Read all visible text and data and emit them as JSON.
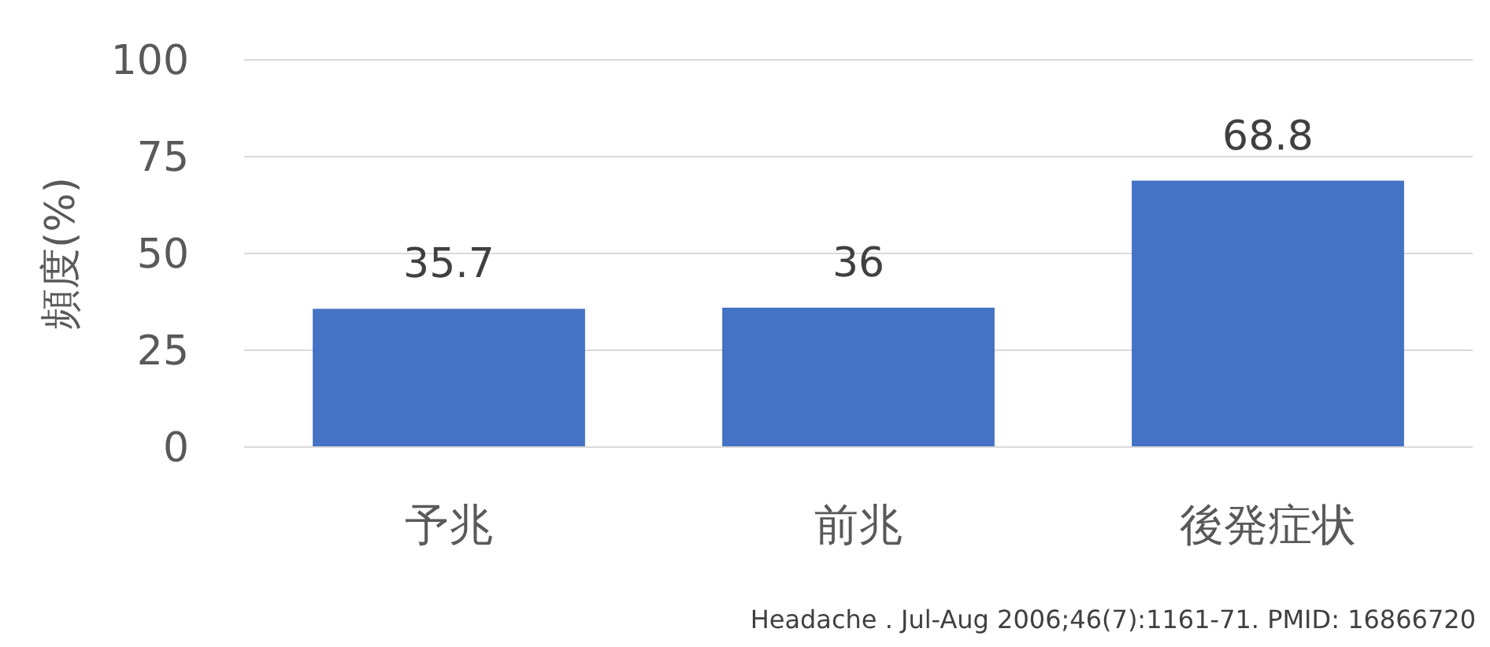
{
  "chart_data": {
    "type": "bar",
    "ylabel": "頻度(%)",
    "categories": [
      "予兆",
      "前兆",
      "後発症状"
    ],
    "values": [
      35.7,
      36,
      68.8
    ],
    "color": "#4472c4",
    "ylim": [
      0,
      100
    ],
    "yticks": [
      0,
      25,
      50,
      75,
      100
    ],
    "grid": "y",
    "data_labels": true,
    "annotations": [
      "Headache . Jul-Aug 2006;46(7):1161-71. PMID: 16866720"
    ]
  }
}
